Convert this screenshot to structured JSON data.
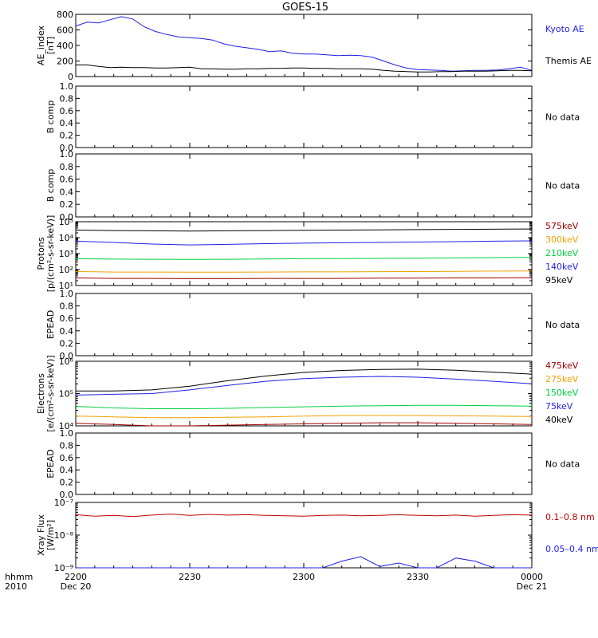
{
  "title": "GOES-15",
  "colors": {
    "black": "#000000",
    "blue": "#1f1fe6",
    "red": "#c00000",
    "orange": "#f0a000",
    "green": "#00d040",
    "darkred": "#a00000"
  },
  "time_axis": {
    "row_label": "hhmm",
    "year_label": "2010",
    "ticks": [
      {
        "label": "2200",
        "sub": "Dec 20"
      },
      {
        "label": "2230",
        "sub": ""
      },
      {
        "label": "2300",
        "sub": ""
      },
      {
        "label": "2330",
        "sub": ""
      },
      {
        "label": "0000",
        "sub": "Dec 21"
      }
    ]
  },
  "chart_data": [
    {
      "id": "ae",
      "type": "line",
      "ylabel": [
        "AE_index",
        "[nT]"
      ],
      "ylim": [
        0,
        800
      ],
      "ticks": [
        "0",
        "200",
        "400",
        "600",
        "800"
      ],
      "scale": "linear",
      "x": [
        0,
        3,
        6,
        9,
        12,
        15,
        18,
        21,
        24,
        27,
        30,
        33,
        36,
        39,
        42,
        45,
        48,
        51,
        54,
        57,
        60,
        63,
        66,
        69,
        72,
        75,
        78,
        81,
        84,
        87,
        90,
        93,
        96,
        99,
        102,
        105,
        108,
        111,
        114,
        117,
        120
      ],
      "series": [
        {
          "name": "Kyoto AE",
          "color": "#1f1fe6",
          "values": [
            650,
            700,
            690,
            730,
            770,
            740,
            640,
            580,
            540,
            510,
            500,
            490,
            470,
            420,
            390,
            370,
            350,
            320,
            330,
            300,
            290,
            290,
            280,
            270,
            275,
            270,
            250,
            200,
            150,
            110,
            90,
            85,
            80,
            70,
            75,
            80,
            80,
            85,
            100,
            120,
            80
          ]
        },
        {
          "name": "Themis AE",
          "color": "#000000",
          "values": [
            150,
            150,
            130,
            115,
            120,
            115,
            115,
            110,
            110,
            115,
            120,
            100,
            100,
            95,
            95,
            100,
            100,
            105,
            105,
            110,
            110,
            105,
            105,
            100,
            100,
            100,
            95,
            80,
            70,
            65,
            60,
            60,
            65,
            65,
            70,
            70,
            70,
            75,
            80,
            80,
            75
          ]
        }
      ]
    },
    {
      "id": "b1",
      "type": "line",
      "ylabel": [
        "B comp"
      ],
      "ylim": [
        0,
        1
      ],
      "ticks": [
        "0.0",
        "0.2",
        "0.4",
        "0.6",
        "0.8",
        "1.0"
      ],
      "scale": "linear",
      "note": "No data",
      "series": []
    },
    {
      "id": "b2",
      "type": "line",
      "ylabel": [
        "B comp"
      ],
      "ylim": [
        0,
        1
      ],
      "ticks": [
        "0.0",
        "0.2",
        "0.4",
        "0.6",
        "0.8",
        "1.0"
      ],
      "scale": "linear",
      "note": "No data",
      "series": []
    },
    {
      "id": "protons",
      "type": "line",
      "ylabel": [
        "Protons",
        "[p/(cm²-s-sr-keV)]"
      ],
      "ylim_log": [
        1,
        5
      ],
      "ticks": [
        "10¹",
        "10²",
        "10³",
        "10⁴",
        "10⁵"
      ],
      "scale": "log",
      "x": [
        0,
        10,
        20,
        30,
        40,
        50,
        60,
        70,
        80,
        90,
        100,
        110,
        120
      ],
      "series": [
        {
          "name": "575keV",
          "color": "#a00000",
          "values": [
            30,
            28,
            28,
            27,
            27,
            28,
            28,
            28,
            29,
            29,
            30,
            30,
            31
          ]
        },
        {
          "name": "300keV",
          "color": "#f0a000",
          "values": [
            75,
            70,
            70,
            68,
            68,
            70,
            72,
            72,
            74,
            75,
            78,
            80,
            82
          ]
        },
        {
          "name": "210keV",
          "color": "#00d040",
          "values": [
            480,
            450,
            440,
            430,
            440,
            460,
            480,
            490,
            500,
            520,
            540,
            560,
            580
          ]
        },
        {
          "name": "140keV",
          "color": "#1f1fe6",
          "values": [
            6000,
            5000,
            4000,
            3500,
            3800,
            4200,
            4500,
            4800,
            5000,
            5300,
            5600,
            6000,
            6300
          ]
        },
        {
          "name": "95keV",
          "color": "#000000",
          "values": [
            30000,
            28000,
            27000,
            26000,
            27000,
            28000,
            29000,
            30000,
            31000,
            32000,
            33000,
            34000,
            35000
          ]
        }
      ]
    },
    {
      "id": "epead1",
      "type": "line",
      "ylabel": [
        "EPEAD"
      ],
      "ylim": [
        0,
        1
      ],
      "ticks": [
        "0.0",
        "0.2",
        "0.4",
        "0.6",
        "0.8",
        "1.0"
      ],
      "scale": "linear",
      "note": "No data",
      "series": []
    },
    {
      "id": "electrons",
      "type": "line",
      "ylabel": [
        "Electrons",
        "[e/(cm²-s-sr-keV)]"
      ],
      "ylim_log": [
        4,
        6
      ],
      "ticks": [
        "10⁴",
        "10⁵",
        "10⁶"
      ],
      "scale": "log",
      "x": [
        0,
        10,
        20,
        30,
        40,
        50,
        60,
        70,
        80,
        90,
        100,
        110,
        120
      ],
      "series": [
        {
          "name": "475keV",
          "color": "#a00000",
          "values": [
            12000,
            11000,
            10000,
            10000,
            10500,
            11000,
            11500,
            12000,
            12500,
            12500,
            12000,
            11500,
            11000
          ]
        },
        {
          "name": "275keV",
          "color": "#f0a000",
          "values": [
            20000,
            19000,
            18000,
            18000,
            18500,
            19000,
            20000,
            21000,
            21000,
            21000,
            20500,
            20000,
            19500
          ]
        },
        {
          "name": "150keV",
          "color": "#00d040",
          "values": [
            40000,
            36000,
            34000,
            34000,
            35000,
            37000,
            39000,
            41000,
            42000,
            43000,
            43000,
            42000,
            41000
          ]
        },
        {
          "name": "75keV",
          "color": "#1f1fe6",
          "values": [
            90000,
            95000,
            100000,
            130000,
            180000,
            240000,
            290000,
            320000,
            340000,
            320000,
            280000,
            240000,
            200000
          ]
        },
        {
          "name": "40keV",
          "color": "#000000",
          "values": [
            120000,
            120000,
            130000,
            170000,
            250000,
            350000,
            450000,
            520000,
            560000,
            570000,
            530000,
            460000,
            400000
          ]
        }
      ]
    },
    {
      "id": "epead2",
      "type": "line",
      "ylabel": [
        "EPEAD"
      ],
      "ylim": [
        0,
        1
      ],
      "ticks": [
        "0.0",
        "0.2",
        "0.4",
        "0.6",
        "0.8",
        "1.0"
      ],
      "scale": "linear",
      "note": "No data",
      "series": []
    },
    {
      "id": "xray",
      "type": "line",
      "ylabel": [
        "Xray Flux",
        "[W/m²]"
      ],
      "ylim_log": [
        -9,
        -7
      ],
      "ticks": [
        "10⁻⁹",
        "10⁻⁸",
        "10⁻⁷"
      ],
      "scale": "log",
      "x": [
        0,
        5,
        10,
        15,
        20,
        25,
        30,
        35,
        40,
        45,
        50,
        55,
        60,
        65,
        70,
        75,
        80,
        85,
        90,
        95,
        100,
        105,
        110,
        115,
        120
      ],
      "series": [
        {
          "name": "0.1–0.8 nm",
          "color": "#c00000",
          "values": [
            4.2e-08,
            3.8e-08,
            4e-08,
            3.7e-08,
            4.1e-08,
            4.4e-08,
            4e-08,
            4.3e-08,
            4.1e-08,
            4.2e-08,
            4e-08,
            3.9e-08,
            3.8e-08,
            4e-08,
            4.1e-08,
            3.9e-08,
            4e-08,
            4.2e-08,
            4e-08,
            3.9e-08,
            4.1e-08,
            3.8e-08,
            4e-08,
            4.2e-08,
            4.1e-08
          ]
        },
        {
          "name": "0.05–0.4 nm",
          "color": "#1f1fe6",
          "values": [
            1e-09,
            1e-09,
            1e-09,
            1e-09,
            1e-09,
            1e-09,
            1e-09,
            1e-09,
            1e-09,
            1e-09,
            1e-09,
            1e-09,
            1e-09,
            1e-09,
            1.6e-09,
            2.2e-09,
            1.1e-09,
            1.4e-09,
            1e-09,
            1e-09,
            2e-09,
            1.6e-09,
            1e-09,
            1e-09,
            1e-09
          ]
        }
      ]
    }
  ]
}
